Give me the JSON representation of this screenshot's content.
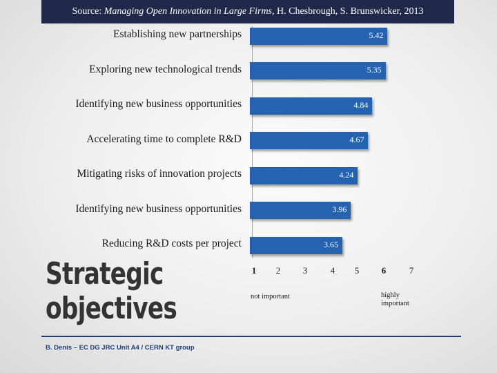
{
  "source": {
    "prefix": "Source: ",
    "title": "Managing Open Innovation in Large Firms",
    "suffix": ", H. Chesbrough, S. Brunswicker, 2013"
  },
  "chart_data": {
    "type": "bar",
    "orientation": "horizontal",
    "categories": [
      "Establishing new partnerships",
      "Exploring new technological trends",
      "Identifying new business opportunities",
      "Accelerating time to complete R&D",
      "Mitigating risks of innovation projects",
      "Identifying new business opportunities",
      "Reducing R&D costs per project"
    ],
    "values": [
      5.42,
      5.35,
      4.84,
      4.67,
      4.24,
      3.96,
      3.65
    ],
    "value_labels": [
      "5.42",
      "5.35",
      "4.84",
      "4.67",
      "4.24",
      "3.96",
      "3.65"
    ],
    "xlim": [
      1,
      7
    ],
    "x_ticks": [
      "1",
      "2",
      "3",
      "4",
      "5",
      "6",
      "7"
    ],
    "x_tick_notes": {
      "low": "not important",
      "high": "highly important"
    },
    "bar_color": "#2563b0",
    "grid": false
  },
  "title": "Strategic objectives",
  "title_lines": [
    "Strategic",
    "objectives"
  ],
  "footer": "B. Denis – EC DG JRC Unit A4 / CERN KT group",
  "colors": {
    "header_bg": "#21294a",
    "rule": "#2b3a66",
    "footer_text": "#1f3f7a"
  }
}
